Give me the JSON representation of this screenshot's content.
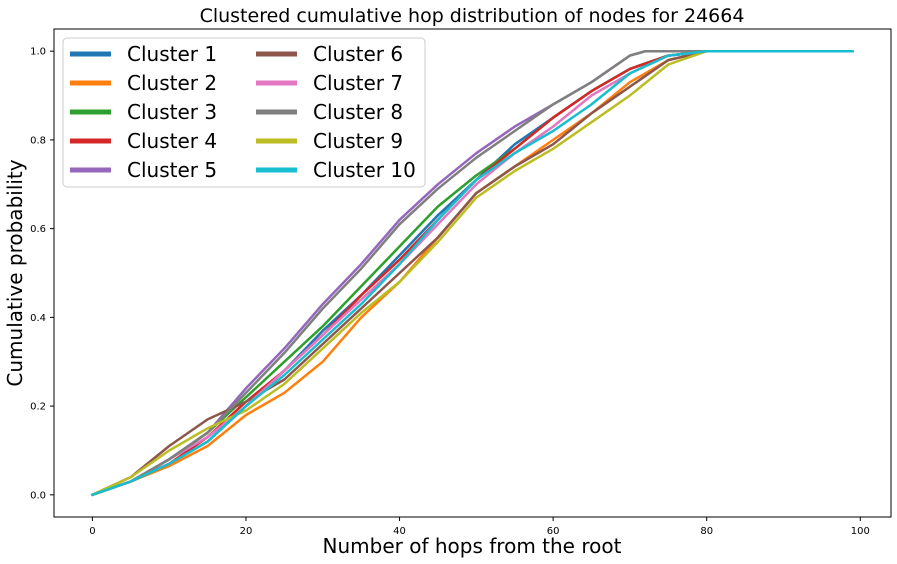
{
  "chart_data": {
    "type": "line",
    "title": "Clustered cumulative hop distribution of nodes for 24664",
    "xlabel": "Number of hops from the root",
    "ylabel": "Cumulative probability",
    "xlim": [
      -5,
      104
    ],
    "ylim": [
      -0.05,
      1.05
    ],
    "xticks": [
      0,
      20,
      40,
      60,
      80,
      100
    ],
    "yticks": [
      0.0,
      0.2,
      0.4,
      0.6,
      0.8,
      1.0
    ],
    "xtick_labels": [
      "0",
      "20",
      "40",
      "60",
      "80",
      "100"
    ],
    "ytick_labels": [
      "0.0",
      "0.2",
      "0.4",
      "0.6",
      "0.8",
      "1.0"
    ],
    "grid": false,
    "legend": {
      "placement": "top-left",
      "columns": 2
    },
    "series": [
      {
        "name": "Cluster 1",
        "color": "#1f77b4",
        "x": [
          0,
          5,
          10,
          15,
          20,
          25,
          30,
          35,
          40,
          45,
          50,
          55,
          60,
          65,
          70,
          75,
          80,
          99
        ],
        "y": [
          0.0,
          0.03,
          0.07,
          0.12,
          0.2,
          0.28,
          0.37,
          0.45,
          0.54,
          0.63,
          0.71,
          0.79,
          0.85,
          0.91,
          0.96,
          0.99,
          1.0,
          1.0
        ]
      },
      {
        "name": "Cluster 2",
        "color": "#ff7f0e",
        "x": [
          0,
          5,
          10,
          15,
          20,
          25,
          30,
          35,
          40,
          45,
          50,
          55,
          60,
          65,
          70,
          75,
          80,
          99
        ],
        "y": [
          0.0,
          0.03,
          0.065,
          0.11,
          0.18,
          0.23,
          0.3,
          0.4,
          0.48,
          0.58,
          0.68,
          0.74,
          0.8,
          0.86,
          0.93,
          0.98,
          1.0,
          1.0
        ]
      },
      {
        "name": "Cluster 3",
        "color": "#2ca02c",
        "x": [
          0,
          5,
          10,
          15,
          20,
          25,
          30,
          35,
          40,
          45,
          50,
          55,
          60,
          65,
          70,
          75,
          80,
          99
        ],
        "y": [
          0.0,
          0.03,
          0.08,
          0.14,
          0.22,
          0.3,
          0.38,
          0.47,
          0.56,
          0.65,
          0.72,
          0.78,
          0.85,
          0.91,
          0.96,
          0.99,
          1.0,
          1.0
        ]
      },
      {
        "name": "Cluster 4",
        "color": "#d62728",
        "x": [
          0,
          5,
          10,
          15,
          20,
          25,
          30,
          35,
          40,
          45,
          50,
          55,
          60,
          65,
          70,
          75,
          80,
          99
        ],
        "y": [
          0.0,
          0.03,
          0.07,
          0.13,
          0.21,
          0.28,
          0.36,
          0.45,
          0.53,
          0.62,
          0.71,
          0.78,
          0.85,
          0.91,
          0.96,
          0.99,
          1.0,
          1.0
        ]
      },
      {
        "name": "Cluster 5",
        "color": "#9467bd",
        "x": [
          0,
          5,
          10,
          15,
          20,
          25,
          30,
          35,
          40,
          45,
          50,
          55,
          60,
          65,
          70,
          72,
          80,
          99
        ],
        "y": [
          0.0,
          0.03,
          0.08,
          0.14,
          0.24,
          0.33,
          0.43,
          0.52,
          0.62,
          0.7,
          0.77,
          0.83,
          0.88,
          0.93,
          0.99,
          1.0,
          1.0,
          1.0
        ]
      },
      {
        "name": "Cluster 6",
        "color": "#8c564b",
        "x": [
          0,
          5,
          10,
          15,
          20,
          25,
          30,
          35,
          40,
          45,
          50,
          55,
          60,
          65,
          70,
          75,
          80,
          99
        ],
        "y": [
          0.0,
          0.04,
          0.11,
          0.17,
          0.21,
          0.26,
          0.34,
          0.42,
          0.5,
          0.58,
          0.68,
          0.74,
          0.79,
          0.86,
          0.92,
          0.98,
          1.0,
          1.0
        ]
      },
      {
        "name": "Cluster 7",
        "color": "#e377c2",
        "x": [
          0,
          5,
          10,
          15,
          20,
          25,
          30,
          35,
          40,
          45,
          50,
          55,
          60,
          65,
          70,
          75,
          80,
          99
        ],
        "y": [
          0.0,
          0.03,
          0.08,
          0.13,
          0.2,
          0.28,
          0.36,
          0.44,
          0.52,
          0.61,
          0.7,
          0.77,
          0.83,
          0.9,
          0.95,
          0.99,
          1.0,
          1.0
        ]
      },
      {
        "name": "Cluster 8",
        "color": "#7f7f7f",
        "x": [
          0,
          5,
          10,
          15,
          20,
          25,
          30,
          35,
          40,
          45,
          50,
          55,
          60,
          65,
          70,
          72,
          80,
          99
        ],
        "y": [
          0.0,
          0.03,
          0.08,
          0.14,
          0.23,
          0.32,
          0.42,
          0.51,
          0.61,
          0.69,
          0.76,
          0.82,
          0.88,
          0.93,
          0.99,
          1.0,
          1.0,
          1.0
        ]
      },
      {
        "name": "Cluster 9",
        "color": "#bcbd22",
        "x": [
          0,
          5,
          10,
          15,
          20,
          25,
          30,
          35,
          40,
          45,
          50,
          55,
          60,
          65,
          70,
          75,
          80,
          99
        ],
        "y": [
          0.0,
          0.04,
          0.1,
          0.15,
          0.19,
          0.25,
          0.33,
          0.41,
          0.48,
          0.57,
          0.67,
          0.73,
          0.78,
          0.84,
          0.9,
          0.97,
          1.0,
          1.0
        ]
      },
      {
        "name": "Cluster 10",
        "color": "#17becf",
        "x": [
          0,
          5,
          10,
          15,
          20,
          25,
          30,
          35,
          40,
          45,
          50,
          55,
          60,
          65,
          70,
          75,
          80,
          99
        ],
        "y": [
          0.0,
          0.03,
          0.07,
          0.12,
          0.2,
          0.27,
          0.35,
          0.43,
          0.52,
          0.62,
          0.71,
          0.77,
          0.82,
          0.88,
          0.95,
          0.99,
          1.0,
          1.0
        ]
      }
    ]
  }
}
